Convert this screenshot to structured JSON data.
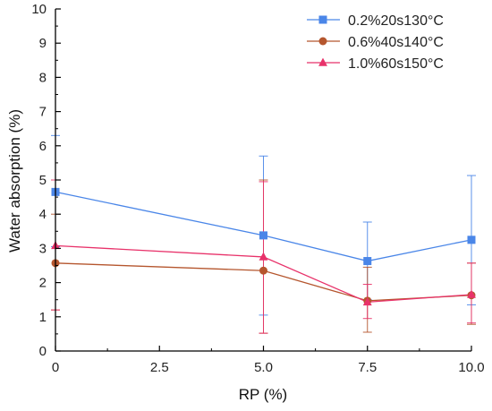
{
  "chart_data": {
    "type": "line",
    "xlabel": "RP (%)",
    "ylabel": "Water absorption (%)",
    "xlim": [
      0,
      10
    ],
    "ylim": [
      0,
      10
    ],
    "x_ticks": [
      "0",
      "2.5",
      "5.0",
      "7.5",
      "10.0"
    ],
    "x_tick_values": [
      0,
      2.5,
      5.0,
      7.5,
      10.0
    ],
    "y_ticks": [
      "0",
      "1",
      "2",
      "3",
      "4",
      "5",
      "6",
      "7",
      "8",
      "9",
      "10"
    ],
    "y_tick_values": [
      0,
      1,
      2,
      3,
      4,
      5,
      6,
      7,
      8,
      9,
      10
    ],
    "grid": false,
    "legend_position": "top-right",
    "x": [
      0,
      5,
      7.5,
      10
    ],
    "series": [
      {
        "name": "0.2%20s130°C",
        "values": [
          4.65,
          3.38,
          2.63,
          3.25
        ],
        "error_low": [
          3.05,
          1.05,
          1.5,
          1.35
        ],
        "error_high": [
          6.3,
          5.7,
          3.77,
          5.13
        ],
        "color": "#4a86e8",
        "marker": "square"
      },
      {
        "name": "0.6%40s140°C",
        "values": [
          2.57,
          2.35,
          1.47,
          1.63
        ],
        "error_low": [
          1.2,
          0.52,
          0.55,
          0.78
        ],
        "error_high": [
          4.0,
          5.0,
          2.45,
          2.57
        ],
        "color": "#b5562e",
        "marker": "circle"
      },
      {
        "name": "1.0%60s150°C",
        "values": [
          3.08,
          2.75,
          1.43,
          1.65
        ],
        "error_low": [
          1.2,
          0.52,
          0.95,
          0.82
        ],
        "error_high": [
          5.0,
          4.95,
          1.95,
          2.57
        ],
        "color": "#e8326a",
        "marker": "triangle"
      }
    ]
  }
}
